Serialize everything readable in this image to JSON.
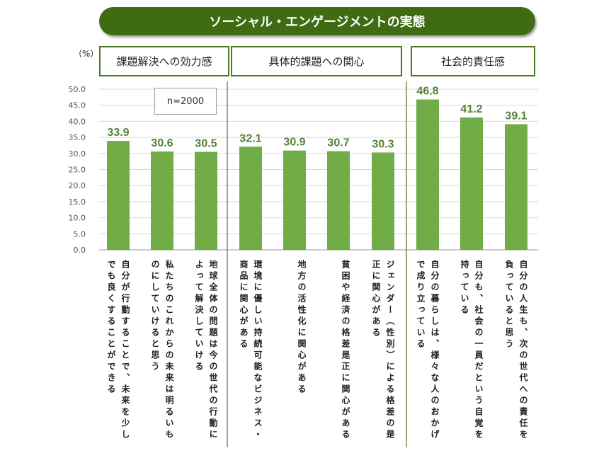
{
  "title": "ソーシャル・エンゲージメントの実態",
  "unit": "（%）",
  "sample": "n=2000",
  "groups": [
    "課題解決への効力感",
    "具体的課題への関心",
    "社会的責任感"
  ],
  "chart_data": {
    "type": "bar",
    "title": "ソーシャル・エンゲージメントの実態",
    "ylabel": "（%）",
    "ylim": [
      0,
      50
    ],
    "yticks": [
      "50.0",
      "45.0",
      "40.0",
      "35.0",
      "30.0",
      "25.0",
      "20.0",
      "15.0",
      "10.0",
      "5.0",
      "0.0"
    ],
    "categories": [
      "自分が行動することで、未来を少しでも良くすることができる",
      "私たちのこれからの未来は明るいものにしていけると思う",
      "地球全体の問題は今の世代の行動によって解決していける",
      "環境に優しい持続可能なビジネス・商品に関心がある",
      "地方の活性化に関心がある",
      "貧困や経済の格差是正に関心がある",
      "ジェンダー（性別）による格差の是正に関心がある",
      "自分の暮らしは、様々な人のおかげで成り立っている",
      "自分も、社会の一員だという自覚を持っている",
      "自分の人生も、次の世代への責任を負っていると思う"
    ],
    "values": [
      33.9,
      30.6,
      30.5,
      32.1,
      30.9,
      30.7,
      30.3,
      46.8,
      41.2,
      39.1
    ],
    "value_labels": [
      "33.9",
      "30.6",
      "30.5",
      "32.1",
      "30.9",
      "30.7",
      "30.3",
      "46.8",
      "41.2",
      "39.1"
    ],
    "group_sizes": [
      3,
      4,
      3
    ],
    "bar_color": "#70ad47",
    "label_color": "#548235",
    "group_border_color": "#4a7a1e",
    "title_bg": "#3f6b13",
    "grid": true
  }
}
